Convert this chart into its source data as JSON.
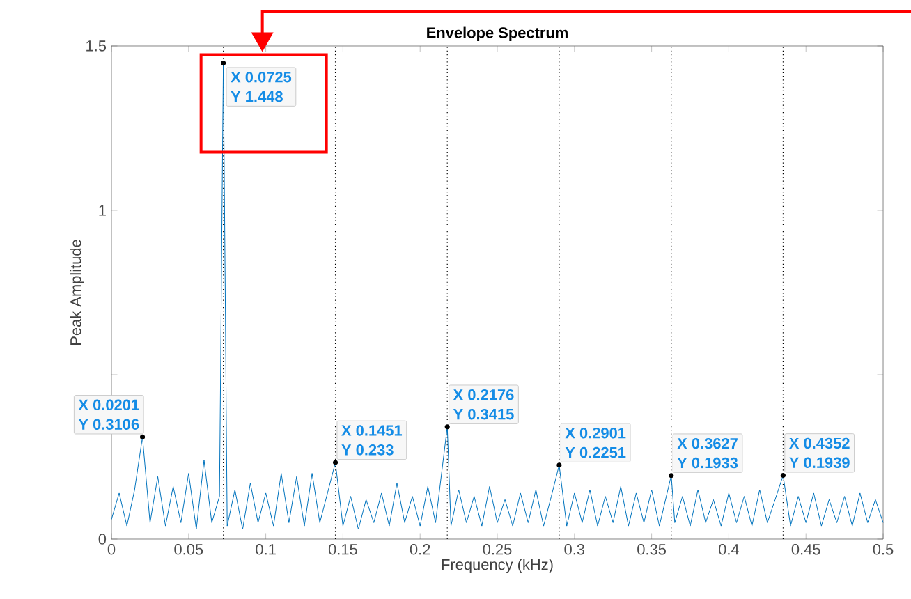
{
  "chart_data": {
    "type": "line",
    "title": "Envelope Spectrum",
    "xlabel": "Frequency (kHz)",
    "ylabel": "Peak Amplitude",
    "xlim": [
      0,
      0.5
    ],
    "ylim": [
      0,
      1.5
    ],
    "xticks": [
      0,
      0.05,
      0.1,
      0.15,
      0.2,
      0.25,
      0.3,
      0.35,
      0.4,
      0.45,
      0.5
    ],
    "yticks": [
      0,
      {
        "value": 0.5,
        "label": null
      },
      1,
      1.5
    ],
    "grid": false,
    "series": [
      {
        "color": "#0072bd",
        "x": [
          0,
          0.005,
          0.01,
          0.015,
          0.0201,
          0.025,
          0.03,
          0.035,
          0.04,
          0.045,
          0.05,
          0.055,
          0.06,
          0.065,
          0.07,
          0.0725,
          0.075,
          0.08,
          0.085,
          0.09,
          0.095,
          0.1,
          0.105,
          0.11,
          0.115,
          0.12,
          0.125,
          0.13,
          0.135,
          0.14,
          0.1451,
          0.15,
          0.155,
          0.16,
          0.165,
          0.17,
          0.175,
          0.18,
          0.185,
          0.19,
          0.195,
          0.2,
          0.205,
          0.21,
          0.2176,
          0.22,
          0.225,
          0.23,
          0.235,
          0.24,
          0.245,
          0.25,
          0.255,
          0.26,
          0.265,
          0.27,
          0.275,
          0.28,
          0.285,
          0.2901,
          0.295,
          0.3,
          0.305,
          0.31,
          0.315,
          0.32,
          0.325,
          0.33,
          0.335,
          0.34,
          0.345,
          0.35,
          0.355,
          0.3627,
          0.365,
          0.37,
          0.375,
          0.38,
          0.385,
          0.39,
          0.395,
          0.4,
          0.405,
          0.41,
          0.415,
          0.42,
          0.425,
          0.43,
          0.4352,
          0.44,
          0.445,
          0.45,
          0.455,
          0.46,
          0.465,
          0.47,
          0.475,
          0.48,
          0.485,
          0.49,
          0.495,
          0.5
        ],
        "values": [
          0.06,
          0.14,
          0.04,
          0.15,
          0.3106,
          0.05,
          0.19,
          0.04,
          0.16,
          0.05,
          0.2,
          0.03,
          0.24,
          0.05,
          0.13,
          1.448,
          0.04,
          0.15,
          0.03,
          0.17,
          0.05,
          0.14,
          0.04,
          0.2,
          0.05,
          0.19,
          0.04,
          0.2,
          0.05,
          0.14,
          0.233,
          0.04,
          0.13,
          0.03,
          0.12,
          0.05,
          0.14,
          0.04,
          0.17,
          0.05,
          0.13,
          0.04,
          0.16,
          0.05,
          0.3415,
          0.04,
          0.15,
          0.05,
          0.13,
          0.04,
          0.16,
          0.05,
          0.12,
          0.04,
          0.14,
          0.05,
          0.15,
          0.04,
          0.13,
          0.2251,
          0.04,
          0.14,
          0.05,
          0.15,
          0.04,
          0.13,
          0.05,
          0.16,
          0.04,
          0.14,
          0.05,
          0.15,
          0.04,
          0.1933,
          0.05,
          0.13,
          0.04,
          0.15,
          0.05,
          0.12,
          0.04,
          0.14,
          0.05,
          0.13,
          0.04,
          0.15,
          0.05,
          0.12,
          0.1939,
          0.04,
          0.13,
          0.05,
          0.14,
          0.04,
          0.12,
          0.05,
          0.13,
          0.04,
          0.14,
          0.05,
          0.12,
          0.05
        ]
      }
    ],
    "ref_lines": [
      {
        "axis": "x",
        "value": 0.0725,
        "color": "#000000",
        "line_style": "dotted"
      },
      {
        "axis": "x",
        "value": 0.1451,
        "color": "#000000",
        "line_style": "dotted"
      },
      {
        "axis": "x",
        "value": 0.2176,
        "color": "#000000",
        "line_style": "dotted"
      },
      {
        "axis": "x",
        "value": 0.2901,
        "color": "#000000",
        "line_style": "dotted"
      },
      {
        "axis": "x",
        "value": 0.3627,
        "color": "#000000",
        "line_style": "dotted"
      },
      {
        "axis": "x",
        "value": 0.4352,
        "color": "#000000",
        "line_style": "dotted"
      }
    ],
    "annotations": [
      {
        "text": "X 0.0201",
        "x": 0.0201,
        "y": 0.3106
      },
      {
        "text": "Y 0.3106",
        "x": 0.0201,
        "y": 0.3106
      },
      {
        "text": "X 0.0725",
        "x": 0.0725,
        "y": 1.448
      },
      {
        "text": "Y 1.448",
        "x": 0.0725,
        "y": 1.448
      },
      {
        "text": "X 0.1451",
        "x": 0.1451,
        "y": 0.233
      },
      {
        "text": "Y 0.233",
        "x": 0.1451,
        "y": 0.233
      },
      {
        "text": "X 0.2176",
        "x": 0.2176,
        "y": 0.3415
      },
      {
        "text": "Y 0.3415",
        "x": 0.2176,
        "y": 0.3415
      },
      {
        "text": "X 0.2901",
        "x": 0.2901,
        "y": 0.2251
      },
      {
        "text": "Y 0.2251",
        "x": 0.2901,
        "y": 0.2251
      },
      {
        "text": "X 0.3627",
        "x": 0.3627,
        "y": 0.1933
      },
      {
        "text": "Y 0.1933",
        "x": 0.3627,
        "y": 0.1933
      },
      {
        "text": "X 0.4352",
        "x": 0.4352,
        "y": 0.1939
      },
      {
        "text": "Y 0.1939",
        "x": 0.4352,
        "y": 0.1939
      }
    ]
  }
}
